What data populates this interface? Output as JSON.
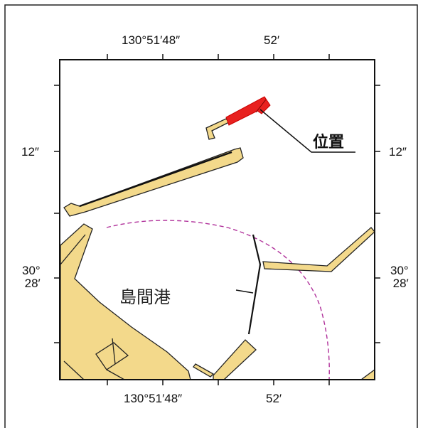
{
  "map": {
    "top_lon_labels": [
      "130°51′48″",
      "52′"
    ],
    "bottom_lon_labels": [
      "130°51′48″",
      "52′"
    ],
    "left_lat_labels": [
      "12″",
      "30°",
      "28′"
    ],
    "right_lat_labels": [
      "12″",
      "30°",
      "28′"
    ],
    "place_name": "島間港",
    "marker_label": "位置",
    "colors": {
      "land": "#f3d98b",
      "marker": "#e8211f",
      "radius_circle": "#b0309a",
      "frame": "#111111"
    }
  }
}
